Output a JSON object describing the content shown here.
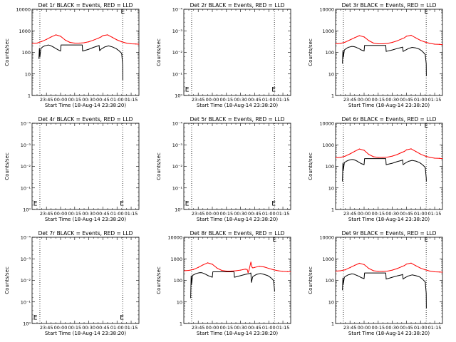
{
  "figure": {
    "x_axis_label": "Start Time (18-Aug-14 23:38:20)",
    "y_axis_label": "Counts/sec",
    "x_tick_labels": [
      "23:45",
      "00:00",
      "00:15",
      "00:30",
      "00:45",
      "01:00",
      "01:15"
    ],
    "colors": {
      "events": "#000000",
      "lld": "#ff0000",
      "background": "#ffffff",
      "axes": "#000000"
    }
  },
  "chart_data": [
    {
      "type": "line",
      "title": "Det 1r BLACK = Events, RED = LLD",
      "ylabel": "Counts/sec",
      "xlabel": "Start Time (18-Aug-14 23:38:20)",
      "yscale": "log",
      "ylim": [
        1,
        10000
      ],
      "y_tick_labels": [
        "1",
        "10",
        "100",
        "1000",
        "10000"
      ],
      "xlim_minutes": [
        -15.3,
        98.3
      ],
      "vlines_minutes": [
        -7,
        81
      ],
      "series": [
        {
          "name": "Events",
          "color": "#000000",
          "x": [
            -8,
            -7.5,
            -7,
            -6,
            -4,
            -2,
            0,
            2,
            4,
            6,
            8,
            10,
            12,
            14,
            15,
            15.5,
            20,
            25,
            30,
            35,
            38,
            38.5,
            40,
            45,
            50,
            55,
            56,
            56.5,
            58,
            62,
            66,
            70,
            74,
            77,
            80,
            81,
            81.2
          ],
          "y": [
            50,
            150,
            60,
            150,
            180,
            200,
            210,
            220,
            210,
            190,
            170,
            150,
            135,
            120,
            115,
            220,
            220,
            220,
            220,
            220,
            220,
            115,
            120,
            140,
            170,
            200,
            210,
            120,
            140,
            180,
            200,
            180,
            150,
            120,
            90,
            25,
            5
          ]
        },
        {
          "name": "LLD",
          "color": "#ff0000",
          "x": [
            -15,
            -10,
            -5,
            0,
            5,
            10,
            15,
            20,
            25,
            30,
            35,
            40,
            45,
            50,
            55,
            58,
            60,
            65,
            70,
            75,
            80,
            85,
            90,
            95,
            98
          ],
          "y": [
            260,
            270,
            320,
            400,
            520,
            650,
            560,
            370,
            290,
            270,
            270,
            280,
            310,
            370,
            450,
            520,
            600,
            650,
            500,
            380,
            310,
            270,
            250,
            245,
            240
          ]
        }
      ],
      "annotations": [
        {
          "text": "E",
          "x": 79,
          "y": 8000
        }
      ]
    },
    {
      "type": "line",
      "title": "Det 2r BLACK = Events, RED = LLD",
      "ylabel": "Counts/sec",
      "xlabel": "Start Time (18-Aug-14 23:38:20)",
      "yscale": "linear",
      "ylim": [
        0,
        1
      ],
      "y_tick_labels": [
        "10⁰",
        "10⁻¹",
        "10⁻²",
        "10⁻³",
        "10⁻⁴"
      ],
      "xlim_minutes": [
        -15.3,
        98.3
      ],
      "vlines_minutes": [
        -7,
        81
      ],
      "series": [],
      "annotations": [
        {
          "text": "E",
          "x": -14,
          "y": 0.07
        },
        {
          "text": "E",
          "x": 78,
          "y": 0.07
        }
      ]
    },
    {
      "type": "line",
      "title": "Det 3r BLACK = Events, RED = LLD",
      "ylabel": "Counts/sec",
      "xlabel": "Start Time (18-Aug-14 23:38:20)",
      "yscale": "log",
      "ylim": [
        1,
        10000
      ],
      "y_tick_labels": [
        "1",
        "10",
        "100",
        "1000",
        "10000"
      ],
      "xlim_minutes": [
        -15.3,
        98.3
      ],
      "vlines_minutes": [
        -7,
        81
      ],
      "series": [
        {
          "name": "Events",
          "color": "#000000",
          "x": [
            -8,
            -7.5,
            -7,
            -6,
            -4,
            -2,
            0,
            2,
            4,
            6,
            8,
            10,
            12,
            14,
            15,
            15.5,
            20,
            25,
            30,
            35,
            38,
            38.5,
            40,
            45,
            50,
            55,
            56,
            56.5,
            58,
            62,
            66,
            70,
            74,
            77,
            80,
            81,
            81.2
          ],
          "y": [
            30,
            120,
            60,
            130,
            150,
            170,
            180,
            190,
            185,
            175,
            160,
            145,
            130,
            120,
            115,
            210,
            210,
            210,
            210,
            210,
            210,
            110,
            115,
            130,
            150,
            170,
            175,
            110,
            120,
            150,
            170,
            160,
            140,
            110,
            80,
            30,
            8
          ]
        },
        {
          "name": "LLD",
          "color": "#ff0000",
          "x": [
            -15,
            -10,
            -5,
            0,
            5,
            10,
            15,
            20,
            25,
            30,
            35,
            40,
            45,
            50,
            55,
            58,
            60,
            65,
            70,
            75,
            80,
            85,
            90,
            95,
            98
          ],
          "y": [
            250,
            260,
            300,
            380,
            480,
            600,
            520,
            350,
            270,
            250,
            250,
            260,
            290,
            340,
            420,
            480,
            560,
            620,
            470,
            360,
            300,
            260,
            240,
            235,
            230
          ]
        }
      ],
      "annotations": [
        {
          "text": "E",
          "x": 79,
          "y": 8000
        }
      ]
    },
    {
      "type": "line",
      "title": "Det 4r BLACK = Events, RED = LLD",
      "ylabel": "Counts/sec",
      "xlabel": "Start Time (18-Aug-14 23:38:20)",
      "yscale": "linear",
      "ylim": [
        0,
        1
      ],
      "y_tick_labels": [
        "10⁰",
        "10⁻¹",
        "10⁻²",
        "10⁻³",
        "10⁻⁴"
      ],
      "xlim_minutes": [
        -15.3,
        98.3
      ],
      "vlines_minutes": [
        -7,
        81
      ],
      "series": [],
      "annotations": [
        {
          "text": "E",
          "x": -14,
          "y": 0.07
        },
        {
          "text": "E",
          "x": 78,
          "y": 0.07
        }
      ]
    },
    {
      "type": "line",
      "title": "Det 5r BLACK = Events, RED = LLD",
      "ylabel": "Counts/sec",
      "xlabel": "Start Time (18-Aug-14 23:38:20)",
      "yscale": "linear",
      "ylim": [
        0,
        1
      ],
      "y_tick_labels": [
        "10⁰",
        "10⁻¹",
        "10⁻²",
        "10⁻³",
        "10⁻⁴"
      ],
      "xlim_minutes": [
        -15.3,
        98.3
      ],
      "vlines_minutes": [
        -7,
        81
      ],
      "series": [],
      "annotations": [
        {
          "text": "E",
          "x": -14,
          "y": 0.07
        },
        {
          "text": "E",
          "x": 78,
          "y": 0.07
        }
      ]
    },
    {
      "type": "line",
      "title": "Det 6r BLACK = Events, RED = LLD",
      "ylabel": "Counts/sec",
      "xlabel": "Start Time (18-Aug-14 23:38:20)",
      "yscale": "log",
      "ylim": [
        1,
        10000
      ],
      "y_tick_labels": [
        "1",
        "10",
        "100",
        "1000",
        "10000"
      ],
      "xlim_minutes": [
        -15.3,
        98.3
      ],
      "vlines_minutes": [
        -7,
        81
      ],
      "series": [
        {
          "name": "Events",
          "color": "#000000",
          "x": [
            -8,
            -7.5,
            -7,
            -6,
            -4,
            -2,
            0,
            2,
            4,
            6,
            8,
            10,
            12,
            14,
            15,
            15.5,
            20,
            25,
            30,
            35,
            38,
            38.5,
            40,
            45,
            50,
            55,
            56,
            56.5,
            58,
            62,
            66,
            70,
            74,
            77,
            80,
            81,
            81.2
          ],
          "y": [
            20,
            140,
            70,
            150,
            170,
            190,
            200,
            210,
            205,
            190,
            170,
            150,
            135,
            125,
            120,
            230,
            230,
            230,
            230,
            230,
            230,
            120,
            125,
            140,
            165,
            190,
            200,
            120,
            135,
            170,
            190,
            175,
            150,
            120,
            90,
            30,
            20
          ]
        },
        {
          "name": "LLD",
          "color": "#ff0000",
          "x": [
            -15,
            -10,
            -5,
            0,
            5,
            10,
            15,
            20,
            25,
            30,
            35,
            40,
            45,
            50,
            55,
            58,
            60,
            65,
            70,
            75,
            80,
            85,
            90,
            95,
            98
          ],
          "y": [
            250,
            260,
            300,
            380,
            500,
            640,
            560,
            360,
            280,
            260,
            260,
            270,
            300,
            350,
            440,
            500,
            580,
            650,
            490,
            370,
            300,
            260,
            240,
            235,
            230
          ]
        }
      ],
      "annotations": [
        {
          "text": "E",
          "x": 79,
          "y": 8000
        }
      ]
    },
    {
      "type": "line",
      "title": "Det 7r BLACK = Events, RED = LLD",
      "ylabel": "Counts/sec",
      "xlabel": "Start Time (18-Aug-14 23:38:20)",
      "yscale": "linear",
      "ylim": [
        0,
        1
      ],
      "y_tick_labels": [
        "10⁰",
        "10⁻¹",
        "10⁻²",
        "10⁻³",
        "10⁻⁴"
      ],
      "xlim_minutes": [
        -15.3,
        98.3
      ],
      "vlines_minutes": [
        -7,
        81
      ],
      "series": [],
      "annotations": [
        {
          "text": "E",
          "x": -14,
          "y": 0.07
        },
        {
          "text": "E",
          "x": 78,
          "y": 0.07
        }
      ]
    },
    {
      "type": "line",
      "title": "Det 8r BLACK = Events, RED = LLD",
      "ylabel": "Counts/sec",
      "xlabel": "Start Time (18-Aug-14 23:38:20)",
      "yscale": "log",
      "ylim": [
        1,
        10000
      ],
      "y_tick_labels": [
        "1",
        "10",
        "100",
        "1000",
        "10000"
      ],
      "xlim_minutes": [
        -15.3,
        98.3
      ],
      "vlines_minutes": [
        -7,
        81
      ],
      "series": [
        {
          "name": "Events",
          "color": "#000000",
          "x": [
            -8,
            -7.5,
            -7,
            -6,
            -4,
            -2,
            0,
            2,
            4,
            6,
            8,
            10,
            12,
            14,
            15,
            15.5,
            20,
            25,
            30,
            35,
            38,
            38.5,
            40,
            45,
            50,
            55,
            56,
            56.5,
            58,
            62,
            66,
            70,
            74,
            77,
            80,
            81,
            81.2
          ],
          "y": [
            15,
            160,
            70,
            170,
            190,
            210,
            220,
            230,
            225,
            210,
            190,
            170,
            155,
            145,
            140,
            250,
            250,
            250,
            250,
            250,
            250,
            140,
            145,
            165,
            190,
            210,
            220,
            80,
            150,
            190,
            210,
            190,
            165,
            135,
            100,
            40,
            30
          ]
        },
        {
          "name": "LLD",
          "color": "#ff0000",
          "x": [
            -15,
            -10,
            -5,
            0,
            5,
            10,
            15,
            20,
            25,
            30,
            35,
            40,
            45,
            50,
            52,
            53,
            54,
            56,
            57,
            58,
            60,
            65,
            70,
            75,
            80,
            85,
            90,
            95,
            98
          ],
          "y": [
            280,
            290,
            320,
            400,
            520,
            650,
            560,
            370,
            290,
            270,
            270,
            280,
            300,
            330,
            320,
            230,
            300,
            700,
            420,
            380,
            400,
            450,
            420,
            360,
            310,
            280,
            260,
            255,
            250
          ]
        }
      ],
      "annotations": [
        {
          "text": "E",
          "x": 79,
          "y": 8000
        }
      ]
    },
    {
      "type": "line",
      "title": "Det 9r BLACK = Events, RED = LLD",
      "ylabel": "Counts/sec",
      "xlabel": "Start Time (18-Aug-14 23:38:20)",
      "yscale": "log",
      "ylim": [
        1,
        10000
      ],
      "y_tick_labels": [
        "1",
        "10",
        "100",
        "1000",
        "10000"
      ],
      "xlim_minutes": [
        -15.3,
        98.3
      ],
      "vlines_minutes": [
        -7,
        81
      ],
      "series": [
        {
          "name": "Events",
          "color": "#000000",
          "x": [
            -8,
            -7.5,
            -7,
            -6,
            -4,
            -2,
            0,
            2,
            4,
            6,
            8,
            10,
            12,
            14,
            15,
            15.5,
            20,
            25,
            30,
            35,
            38,
            38.5,
            40,
            45,
            50,
            55,
            56,
            56.5,
            58,
            62,
            66,
            70,
            74,
            77,
            80,
            81,
            81.2
          ],
          "y": [
            35,
            130,
            70,
            140,
            160,
            180,
            190,
            200,
            195,
            180,
            165,
            150,
            135,
            125,
            120,
            220,
            220,
            220,
            220,
            220,
            220,
            115,
            120,
            140,
            160,
            180,
            190,
            115,
            130,
            160,
            180,
            165,
            145,
            115,
            85,
            25,
            5
          ]
        },
        {
          "name": "LLD",
          "color": "#ff0000",
          "x": [
            -15,
            -10,
            -5,
            0,
            5,
            10,
            15,
            20,
            25,
            30,
            35,
            40,
            45,
            50,
            55,
            58,
            60,
            65,
            70,
            75,
            80,
            85,
            90,
            95,
            98
          ],
          "y": [
            270,
            280,
            310,
            390,
            500,
            620,
            540,
            360,
            280,
            260,
            260,
            270,
            300,
            350,
            430,
            490,
            570,
            630,
            480,
            370,
            310,
            270,
            250,
            245,
            240
          ]
        }
      ],
      "annotations": [
        {
          "text": "E",
          "x": 79,
          "y": 8000
        }
      ]
    }
  ]
}
